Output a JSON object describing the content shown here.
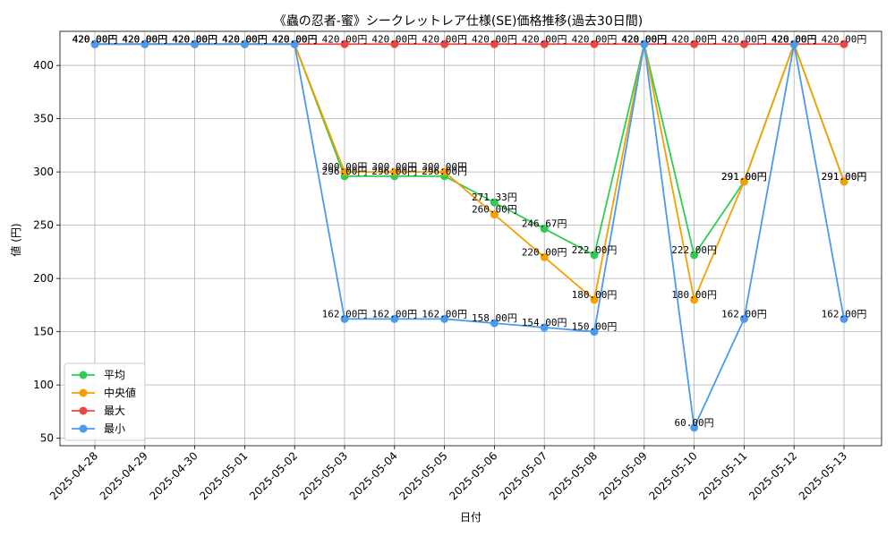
{
  "chart_data": {
    "type": "line",
    "title": "《蟲の忍者-蜜》シークレットレア仕様(SE)価格推移(過去30日間)",
    "xlabel": "日付",
    "ylabel": "値 (円)",
    "ylim": [
      43,
      432
    ],
    "yticks": [
      50,
      100,
      150,
      200,
      250,
      300,
      350,
      400
    ],
    "grid": true,
    "legend_position": "lower-left",
    "label_suffix": "円",
    "categories": [
      "2025-04-28",
      "2025-04-29",
      "2025-04-30",
      "2025-05-01",
      "2025-05-02",
      "2025-05-03",
      "2025-05-04",
      "2025-05-05",
      "2025-05-06",
      "2025-05-07",
      "2025-05-08",
      "2025-05-09",
      "2025-05-10",
      "2025-05-11",
      "2025-05-12",
      "2025-05-13"
    ],
    "series": [
      {
        "name": "平均",
        "color": "#2ecc52",
        "values": [
          420,
          420,
          420,
          420,
          420,
          296,
          296,
          296,
          271.33,
          246.67,
          222,
          420,
          222,
          291,
          420,
          291
        ]
      },
      {
        "name": "中央値",
        "color": "#f5a000",
        "values": [
          420,
          420,
          420,
          420,
          420,
          300,
          300,
          300,
          260,
          220,
          180,
          420,
          180,
          291,
          420,
          291
        ]
      },
      {
        "name": "最大",
        "color": "#f04545",
        "values": [
          420,
          420,
          420,
          420,
          420,
          420,
          420,
          420,
          420,
          420,
          420,
          420,
          420,
          420,
          420,
          420
        ]
      },
      {
        "name": "最小",
        "color": "#4a9af0",
        "values": [
          420,
          420,
          420,
          420,
          420,
          162,
          162,
          162,
          158,
          154,
          150,
          420,
          60,
          162,
          420,
          162
        ]
      }
    ]
  }
}
